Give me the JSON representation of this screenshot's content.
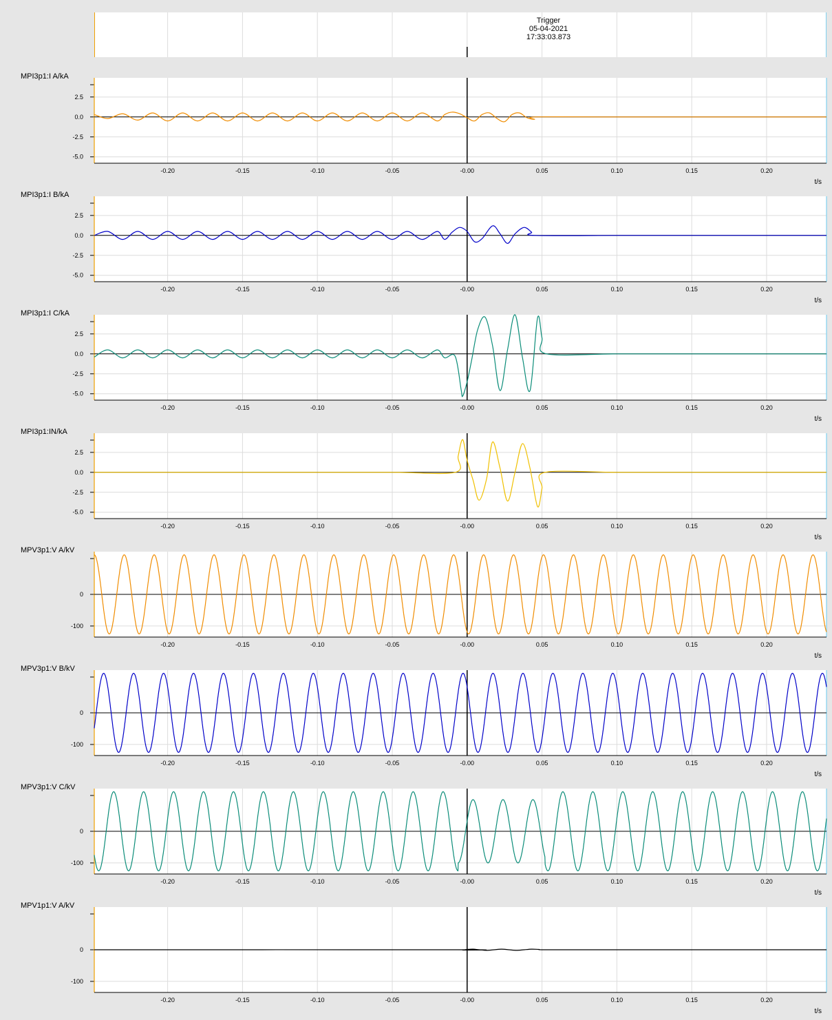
{
  "trigger": {
    "label": "Trigger",
    "date": "05-04-2021",
    "time": "17:33:03.873"
  },
  "colors": {
    "orange": "#f08c00",
    "blue": "#0000c8",
    "teal": "#0a8c78",
    "yellow": "#f0c000",
    "black": "#000000",
    "axis_left": "#f0a000",
    "axis_right": "#7fd0f0",
    "grid": "#dcdcdc",
    "background": "#e6e6e6"
  },
  "chart_data": [
    {
      "type": "line",
      "title": "MPI3p1:I A/kA",
      "xlabel": "t/s",
      "xlim": [
        -0.249,
        0.24
      ],
      "ylim": [
        -5.8,
        4.9
      ],
      "x_ticks": [
        "-0.20",
        "-0.15",
        "-0.10",
        "-0.05",
        "-0.00",
        "0.05",
        "0.10",
        "0.15",
        "0.20"
      ],
      "y_ticks": [
        "2.5",
        "0.0",
        "-2.5",
        "-5.0"
      ],
      "grid": true,
      "series_style": {
        "color": "#f08c00",
        "baseline": true
      },
      "series": [
        {
          "x": [
            -0.249,
            -0.24,
            -0.23,
            -0.22,
            -0.21,
            -0.2,
            -0.19,
            -0.18,
            -0.17,
            -0.16,
            -0.15,
            -0.14,
            -0.13,
            -0.12,
            -0.11,
            -0.1,
            -0.09,
            -0.08,
            -0.07,
            -0.06,
            -0.05,
            -0.04,
            -0.03,
            -0.02,
            -0.015,
            -0.01,
            -0.005,
            0.0,
            0.005,
            0.01,
            0.015,
            0.02,
            0.025,
            0.03,
            0.035,
            0.04,
            0.045,
            0.046,
            0.1,
            0.15,
            0.2,
            0.24
          ],
          "y": [
            0.3,
            -0.2,
            0.4,
            -0.4,
            0.5,
            -0.5,
            0.5,
            -0.5,
            0.5,
            -0.5,
            0.5,
            -0.5,
            0.5,
            -0.5,
            0.5,
            -0.5,
            0.5,
            -0.5,
            0.5,
            -0.5,
            0.5,
            -0.5,
            0.5,
            -0.5,
            0.3,
            0.6,
            0.4,
            -0.1,
            -0.5,
            0.3,
            0.5,
            -0.2,
            -0.6,
            0.3,
            0.5,
            -0.1,
            -0.3,
            0.0,
            0.0,
            0.0,
            0.0,
            0.0
          ]
        }
      ]
    },
    {
      "type": "line",
      "title": "MPI3p1:I B/kA",
      "xlabel": "t/s",
      "xlim": [
        -0.249,
        0.24
      ],
      "ylim": [
        -5.8,
        4.9
      ],
      "x_ticks": [
        "-0.20",
        "-0.15",
        "-0.10",
        "-0.05",
        "-0.00",
        "0.05",
        "0.10",
        "0.15",
        "0.20"
      ],
      "y_ticks": [
        "2.5",
        "0.0",
        "-2.5",
        "-5.0"
      ],
      "grid": true,
      "series_style": {
        "color": "#0000c8",
        "baseline": true
      },
      "series": [
        {
          "x": [
            -0.249,
            -0.24,
            -0.23,
            -0.22,
            -0.21,
            -0.2,
            -0.19,
            -0.18,
            -0.17,
            -0.16,
            -0.15,
            -0.14,
            -0.13,
            -0.12,
            -0.11,
            -0.1,
            -0.09,
            -0.08,
            -0.07,
            -0.06,
            -0.05,
            -0.04,
            -0.03,
            -0.02,
            -0.015,
            -0.01,
            -0.005,
            0.0,
            0.005,
            0.01,
            0.017,
            0.022,
            0.027,
            0.032,
            0.038,
            0.043,
            0.045,
            0.1,
            0.15,
            0.2,
            0.24
          ],
          "y": [
            0.0,
            0.5,
            -0.5,
            0.5,
            -0.5,
            0.5,
            -0.5,
            0.5,
            -0.5,
            0.5,
            -0.5,
            0.5,
            -0.5,
            0.5,
            -0.5,
            0.5,
            -0.5,
            0.5,
            -0.5,
            0.5,
            -0.5,
            0.5,
            -0.5,
            0.5,
            -0.5,
            0.4,
            1.0,
            0.5,
            -0.8,
            -0.4,
            1.2,
            0.2,
            -1.0,
            0.2,
            1.0,
            0.4,
            0.0,
            0.0,
            0.0,
            0.0,
            0.0
          ]
        }
      ]
    },
    {
      "type": "line",
      "title": "MPI3p1:I C/kA",
      "xlabel": "t/s",
      "xlim": [
        -0.249,
        0.24
      ],
      "ylim": [
        -5.8,
        4.9
      ],
      "x_ticks": [
        "-0.20",
        "-0.15",
        "-0.10",
        "-0.05",
        "-0.00",
        "0.05",
        "0.10",
        "0.15",
        "0.20"
      ],
      "y_ticks": [
        "2.5",
        "0.0",
        "-2.5",
        "-5.0"
      ],
      "grid": true,
      "series_style": {
        "color": "#0a8c78",
        "baseline": true
      },
      "series": [
        {
          "x": [
            -0.249,
            -0.24,
            -0.23,
            -0.22,
            -0.21,
            -0.2,
            -0.19,
            -0.18,
            -0.17,
            -0.16,
            -0.15,
            -0.14,
            -0.13,
            -0.12,
            -0.11,
            -0.1,
            -0.09,
            -0.08,
            -0.07,
            -0.06,
            -0.05,
            -0.04,
            -0.03,
            -0.02,
            -0.015,
            -0.008,
            -0.004,
            -0.003,
            0.0,
            0.003,
            0.007,
            0.012,
            0.017,
            0.022,
            0.027,
            0.032,
            0.037,
            0.042,
            0.047,
            0.05,
            0.053,
            0.1,
            0.15,
            0.2,
            0.24
          ],
          "y": [
            -0.4,
            0.5,
            -0.5,
            0.5,
            -0.5,
            0.5,
            -0.5,
            0.5,
            -0.5,
            0.5,
            -0.5,
            0.5,
            -0.5,
            0.5,
            -0.5,
            0.5,
            -0.5,
            0.5,
            -0.5,
            0.5,
            -0.5,
            0.5,
            -0.5,
            0.5,
            -0.5,
            -0.3,
            -4.5,
            -5.3,
            -3.5,
            -0.8,
            3.0,
            4.6,
            1.0,
            -4.6,
            0.5,
            4.9,
            -0.5,
            -4.6,
            4.5,
            2.0,
            0.0,
            0.0,
            0.0,
            0.0,
            0.0
          ]
        }
      ]
    },
    {
      "type": "line",
      "title": "MPI3p1:IN/kA",
      "xlabel": "t/s",
      "xlim": [
        -0.249,
        0.24
      ],
      "ylim": [
        -5.8,
        4.9
      ],
      "x_ticks": [
        "-0.20",
        "-0.15",
        "-0.10",
        "-0.05",
        "-0.00",
        "0.05",
        "0.10",
        "0.15",
        "0.20"
      ],
      "y_ticks": [
        "2.5",
        "0.0",
        "-2.5",
        "-5.0"
      ],
      "grid": true,
      "series_style": {
        "color": "#f0c000",
        "baseline": true
      },
      "series": [
        {
          "x": [
            -0.249,
            -0.1,
            -0.05,
            -0.008,
            -0.006,
            -0.003,
            0.0,
            0.004,
            0.008,
            0.013,
            0.017,
            0.022,
            0.027,
            0.032,
            0.037,
            0.042,
            0.047,
            0.05,
            0.052,
            0.1,
            0.15,
            0.2,
            0.24
          ],
          "y": [
            0.0,
            0.0,
            0.0,
            0.0,
            2.0,
            4.1,
            1.5,
            -1.0,
            -3.5,
            -0.8,
            3.8,
            0.5,
            -3.6,
            0.0,
            3.6,
            0.5,
            -4.3,
            -2.0,
            0.0,
            0.0,
            0.0,
            0.0,
            0.0
          ]
        }
      ]
    },
    {
      "type": "line",
      "title": "MPV3p1:V A/kV",
      "xlabel": "t/s",
      "xlim": [
        -0.249,
        0.24
      ],
      "ylim": [
        -135,
        135
      ],
      "x_ticks": [
        "-0.20",
        "-0.15",
        "-0.10",
        "-0.05",
        "-0.00",
        "0.05",
        "0.10",
        "0.15",
        "0.20"
      ],
      "y_ticks": [
        "0",
        "-100"
      ],
      "grid": true,
      "series_style": {
        "color": "#f08c00",
        "baseline": true,
        "sine": {
          "amplitude": 125,
          "period": 0.02,
          "phase_zero": -0.249,
          "phase_offset": 1.5708
        }
      },
      "series": []
    },
    {
      "type": "line",
      "title": "MPV3p1:V B/kV",
      "xlabel": "t/s",
      "xlim": [
        -0.249,
        0.24
      ],
      "ylim": [
        -135,
        135
      ],
      "x_ticks": [
        "-0.20",
        "-0.15",
        "-0.10",
        "-0.05",
        "-0.00",
        "0.05",
        "0.10",
        "0.15",
        "0.20"
      ],
      "y_ticks": [
        "0",
        "-100"
      ],
      "grid": true,
      "series_style": {
        "color": "#0000c8",
        "baseline": true,
        "sine": {
          "amplitude": 125,
          "period": 0.02,
          "phase_zero": -0.249,
          "phase_offset": -0.4
        }
      },
      "series": []
    },
    {
      "type": "line",
      "title": "MPV3p1:V C/kV",
      "xlabel": "t/s",
      "xlim": [
        -0.249,
        0.24
      ],
      "ylim": [
        -135,
        135
      ],
      "x_ticks": [
        "-0.20",
        "-0.15",
        "-0.10",
        "-0.05",
        "-0.00",
        "0.05",
        "0.10",
        "0.15",
        "0.20"
      ],
      "y_ticks": [
        "0",
        "-100"
      ],
      "grid": true,
      "series_style": {
        "color": "#0a8c78",
        "baseline": true,
        "sine": {
          "amplitude": 125,
          "period": 0.02,
          "phase_zero": -0.249,
          "phase_offset": -2.5,
          "fault_window": [
            -0.006,
            0.052
          ],
          "fault_amplitude": 100
        }
      },
      "series": []
    },
    {
      "type": "line",
      "title": "MPV1p1:V A/kV",
      "xlabel": "t/s",
      "xlim": [
        -0.249,
        0.24
      ],
      "ylim": [
        -135,
        135
      ],
      "x_ticks": [
        "-0.20",
        "-0.15",
        "-0.10",
        "-0.05",
        "-0.00",
        "0.05",
        "0.10",
        "0.15",
        "0.20"
      ],
      "y_ticks": [
        "0",
        "-100"
      ],
      "grid": true,
      "series_style": {
        "color": "#000000",
        "baseline": false
      },
      "series": [
        {
          "x": [
            -0.249,
            -0.006,
            -0.003,
            0.0,
            0.004,
            0.008,
            0.013,
            0.018,
            0.023,
            0.028,
            0.033,
            0.038,
            0.043,
            0.048,
            0.053,
            0.1,
            0.15,
            0.2,
            0.24
          ],
          "y": [
            0,
            0,
            -1,
            1,
            2,
            0,
            -2,
            0,
            2,
            0,
            -2,
            0,
            2,
            1,
            0,
            0,
            0,
            0,
            0
          ]
        }
      ]
    }
  ]
}
